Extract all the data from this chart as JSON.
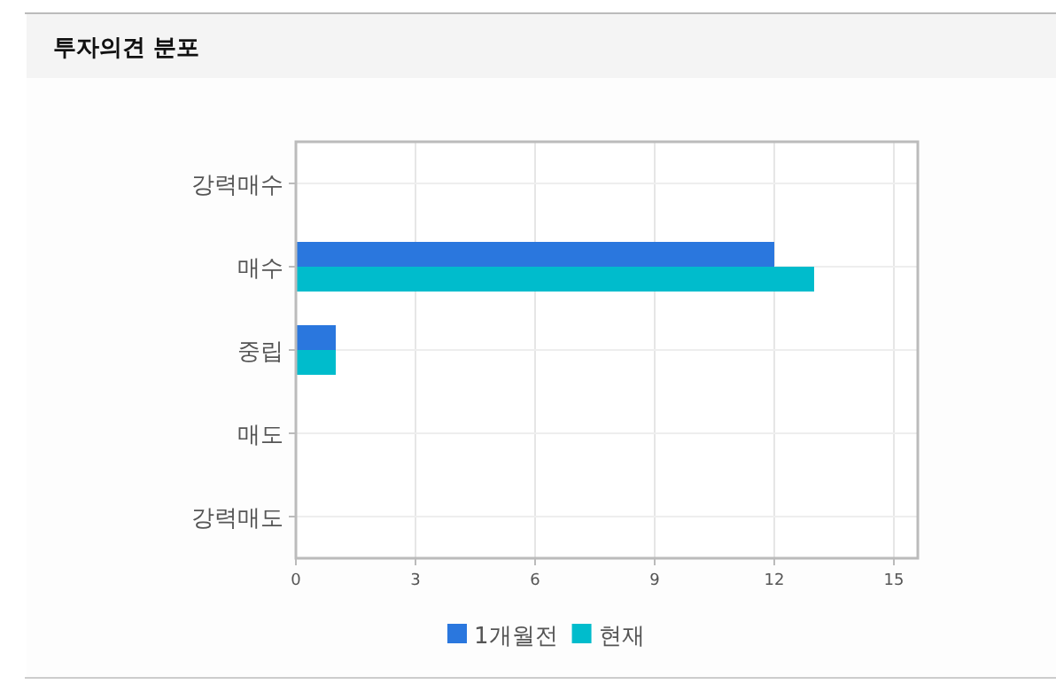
{
  "chart_data": {
    "type": "bar",
    "orientation": "horizontal",
    "title": "투자의견 분포",
    "categories": [
      "강력매수",
      "매수",
      "중립",
      "매도",
      "강력매도"
    ],
    "series": [
      {
        "name": "1개월전",
        "color": "#2a77de",
        "values": [
          0,
          12,
          1,
          0,
          0
        ]
      },
      {
        "name": "현재",
        "color": "#00bccc",
        "values": [
          0,
          13,
          1,
          0,
          0
        ]
      }
    ],
    "xlim": [
      0,
      15.6
    ],
    "xticks": [
      0,
      3,
      6,
      9,
      12,
      15
    ],
    "grid": true,
    "legend": "bottom"
  }
}
